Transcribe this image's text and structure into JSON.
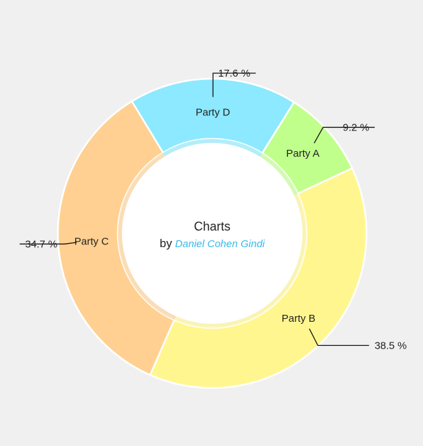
{
  "chart_data": {
    "type": "pie",
    "style": "donut",
    "categories": [
      "Party A",
      "Party B",
      "Party C",
      "Party D"
    ],
    "values": [
      9.2,
      38.5,
      34.7,
      17.6
    ],
    "value_labels": [
      "9.2 %",
      "38.5 %",
      "34.7 %",
      "17.6 %"
    ],
    "colors": [
      "#c1ff8c",
      "#fff68f",
      "#ffd091",
      "#8ce9ff"
    ],
    "center_text": {
      "title": "Charts",
      "by": "by",
      "author": "Daniel Cohen Gindi",
      "author_color": "#3bb9e8"
    },
    "legend": "none",
    "background": "#f0f0f0"
  }
}
